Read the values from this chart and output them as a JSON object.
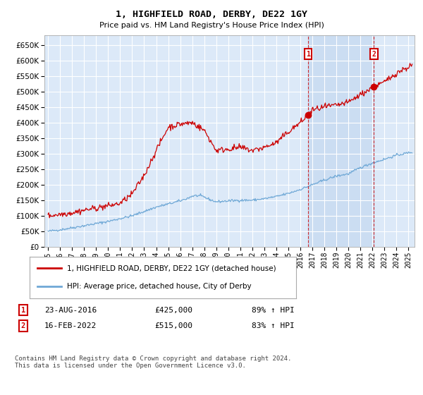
{
  "title": "1, HIGHFIELD ROAD, DERBY, DE22 1GY",
  "subtitle": "Price paid vs. HM Land Registry's House Price Index (HPI)",
  "yticks": [
    0,
    50000,
    100000,
    150000,
    200000,
    250000,
    300000,
    350000,
    400000,
    450000,
    500000,
    550000,
    600000,
    650000
  ],
  "ylim": [
    0,
    680000
  ],
  "xlim_start": 1994.7,
  "xlim_end": 2025.5,
  "xticks": [
    1995,
    1996,
    1997,
    1998,
    1999,
    2000,
    2001,
    2002,
    2003,
    2004,
    2005,
    2006,
    2007,
    2008,
    2009,
    2010,
    2011,
    2012,
    2013,
    2014,
    2015,
    2016,
    2017,
    2018,
    2019,
    2020,
    2021,
    2022,
    2023,
    2024,
    2025
  ],
  "bg_color": "#dce9f8",
  "grid_color": "#ffffff",
  "shade_color": "#c5d9f0",
  "sale1_date": 2016.644,
  "sale1_price": 425000,
  "sale2_date": 2022.12,
  "sale2_price": 515000,
  "red_line_color": "#cc0000",
  "blue_line_color": "#6fa8d6",
  "annotation_box_color": "#cc0000",
  "legend1_label": "1, HIGHFIELD ROAD, DERBY, DE22 1GY (detached house)",
  "legend2_label": "HPI: Average price, detached house, City of Derby",
  "footer": "Contains HM Land Registry data © Crown copyright and database right 2024.\nThis data is licensed under the Open Government Licence v3.0."
}
